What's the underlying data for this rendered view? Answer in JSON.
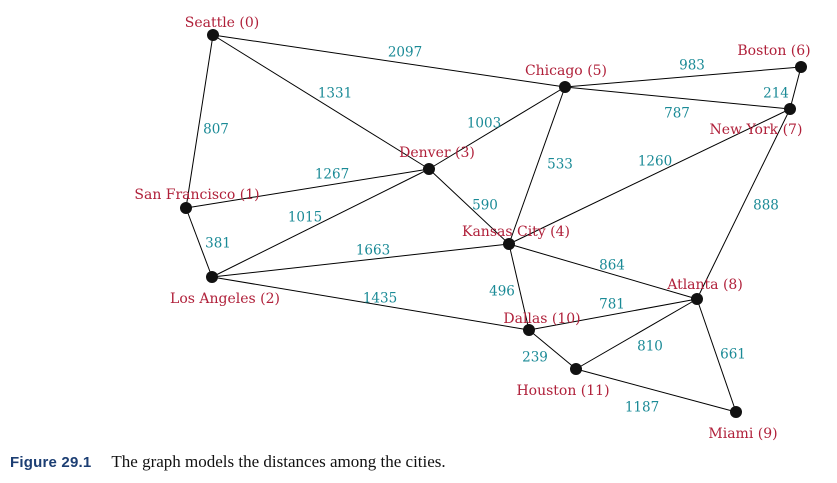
{
  "figure": {
    "label": "Figure 29.1",
    "caption": "The graph models the distances among the cities."
  },
  "colors": {
    "city": "#b0203a",
    "weight": "#1a8a96",
    "edge": "#000000",
    "node": "#111111",
    "label": "#1c3e73"
  },
  "graph": {
    "nodes": [
      {
        "id": 0,
        "label": "Seattle (0)"
      },
      {
        "id": 1,
        "label": "San Francisco (1)"
      },
      {
        "id": 2,
        "label": "Los Angeles (2)"
      },
      {
        "id": 3,
        "label": "Denver (3)"
      },
      {
        "id": 4,
        "label": "Kansas City (4)"
      },
      {
        "id": 5,
        "label": "Chicago (5)"
      },
      {
        "id": 6,
        "label": "Boston (6)"
      },
      {
        "id": 7,
        "label": "New York (7)"
      },
      {
        "id": 8,
        "label": "Atlanta (8)"
      },
      {
        "id": 9,
        "label": "Miami (9)"
      },
      {
        "id": 10,
        "label": "Dallas (10)"
      },
      {
        "id": 11,
        "label": "Houston (11)"
      }
    ],
    "edges": [
      {
        "from": 0,
        "to": 5,
        "weight": "2097"
      },
      {
        "from": 0,
        "to": 3,
        "weight": "1331"
      },
      {
        "from": 0,
        "to": 1,
        "weight": "807"
      },
      {
        "from": 1,
        "to": 3,
        "weight": "1267"
      },
      {
        "from": 1,
        "to": 2,
        "weight": "381"
      },
      {
        "from": 2,
        "to": 3,
        "weight": "1015"
      },
      {
        "from": 2,
        "to": 4,
        "weight": "1663"
      },
      {
        "from": 2,
        "to": 10,
        "weight": "1435"
      },
      {
        "from": 3,
        "to": 5,
        "weight": "1003"
      },
      {
        "from": 3,
        "to": 4,
        "weight": "590"
      },
      {
        "from": 4,
        "to": 5,
        "weight": "533"
      },
      {
        "from": 4,
        "to": 7,
        "weight": "1260"
      },
      {
        "from": 4,
        "to": 8,
        "weight": "864"
      },
      {
        "from": 4,
        "to": 10,
        "weight": "496"
      },
      {
        "from": 5,
        "to": 6,
        "weight": "983"
      },
      {
        "from": 5,
        "to": 7,
        "weight": "787"
      },
      {
        "from": 6,
        "to": 7,
        "weight": "214"
      },
      {
        "from": 7,
        "to": 8,
        "weight": "888"
      },
      {
        "from": 8,
        "to": 10,
        "weight": "781"
      },
      {
        "from": 8,
        "to": 11,
        "weight": "810"
      },
      {
        "from": 8,
        "to": 9,
        "weight": "661"
      },
      {
        "from": 10,
        "to": 11,
        "weight": "239"
      },
      {
        "from": 11,
        "to": 9,
        "weight": "1187"
      }
    ]
  }
}
